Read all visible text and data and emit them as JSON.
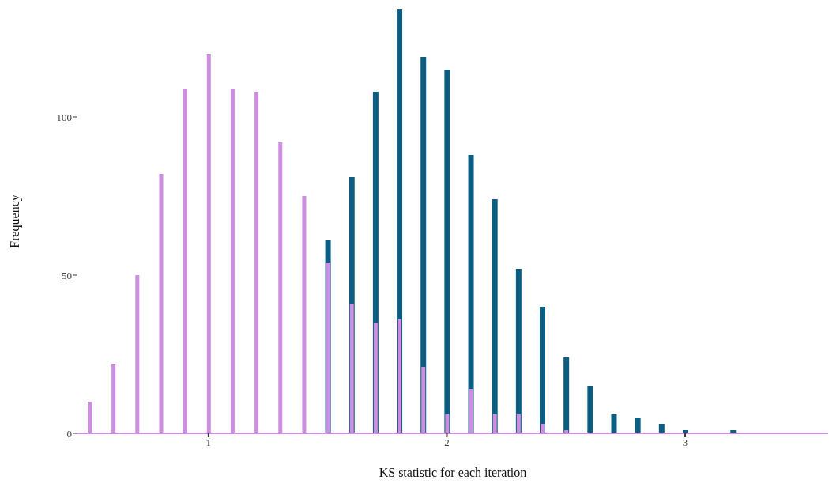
{
  "chart_data": {
    "type": "bar",
    "xlabel": "KS statistic for each iteration",
    "ylabel": "Frequency",
    "x": [
      0.5,
      0.6,
      0.7,
      0.8,
      0.9,
      1.0,
      1.1,
      1.2,
      1.3,
      1.4,
      1.5,
      1.6,
      1.7,
      1.8,
      1.9,
      2.0,
      2.1,
      2.2,
      2.3,
      2.4,
      2.5,
      2.6,
      2.7,
      2.8,
      2.9,
      3.0,
      3.2
    ],
    "series": [
      {
        "color": "#0b5d82",
        "values": [
          null,
          null,
          null,
          null,
          null,
          null,
          null,
          null,
          null,
          null,
          61,
          81,
          108,
          134,
          119,
          115,
          88,
          74,
          52,
          40,
          24,
          15,
          6,
          5,
          3,
          1,
          1
        ]
      },
      {
        "color": "#cc8ee0",
        "values": [
          10,
          22,
          50,
          82,
          109,
          120,
          109,
          108,
          92,
          75,
          54,
          41,
          35,
          36,
          21,
          6,
          14,
          6,
          6,
          3,
          1,
          0,
          0,
          0,
          0,
          0,
          0
        ]
      }
    ],
    "xlim": [
      0.45,
      3.6
    ],
    "xticks": [
      1,
      2,
      3
    ],
    "ylim": [
      0,
      134
    ],
    "yticks": [
      0,
      50,
      100
    ]
  }
}
